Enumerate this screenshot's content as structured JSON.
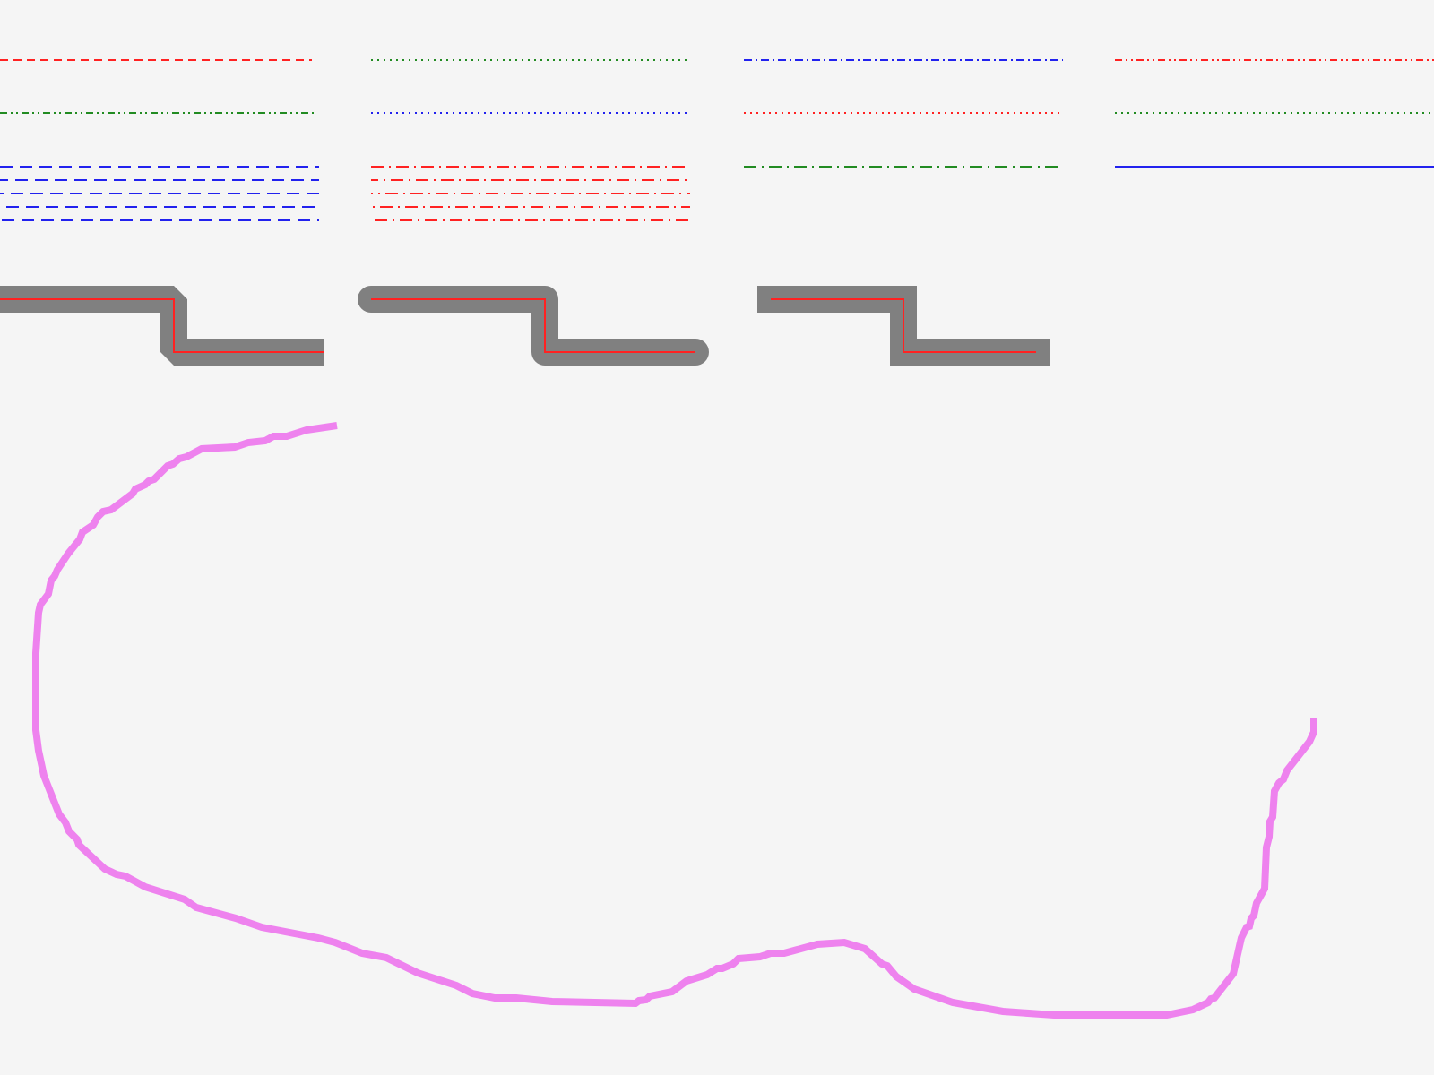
{
  "background": "#f5f5f5",
  "colors": {
    "red": "#ff2222",
    "green": "#228b22",
    "blue": "#2222ee",
    "gray": "#808080",
    "violet": "#ee82ee"
  },
  "line_styles": [
    {
      "name": "dashed-red",
      "color": "red",
      "dash": "dashed"
    },
    {
      "name": "dotted-green",
      "color": "green",
      "dash": "dotted"
    },
    {
      "name": "dashdot-blue",
      "color": "blue",
      "dash": "dashdot"
    },
    {
      "name": "dashdotdot-red",
      "color": "red",
      "dash": "dashdotdot"
    },
    {
      "name": "dashdotdot-green",
      "color": "green",
      "dash": "dashdotdot"
    },
    {
      "name": "dotted-blue",
      "color": "blue",
      "dash": "dotted"
    },
    {
      "name": "dotted-red",
      "color": "red",
      "dash": "dotted"
    },
    {
      "name": "dotted-green-2",
      "color": "green",
      "dash": "dotted"
    },
    {
      "name": "long-dashed-blue-group",
      "color": "blue",
      "dash": "longdash",
      "count": 5
    },
    {
      "name": "dashdot-red-group",
      "color": "red",
      "dash": "longdashdot",
      "count": 5
    },
    {
      "name": "dashdot-green",
      "color": "green",
      "dash": "longdashdot"
    },
    {
      "name": "solid-blue",
      "color": "blue",
      "dash": "solid"
    }
  ],
  "joins": [
    {
      "name": "bevel-join",
      "join": "bevel",
      "cap": "butt"
    },
    {
      "name": "round-join",
      "join": "round",
      "cap": "round"
    },
    {
      "name": "miter-join",
      "join": "miter",
      "cap": "square"
    }
  ],
  "free_path": {
    "name": "freehand-curve",
    "color": "violet"
  }
}
